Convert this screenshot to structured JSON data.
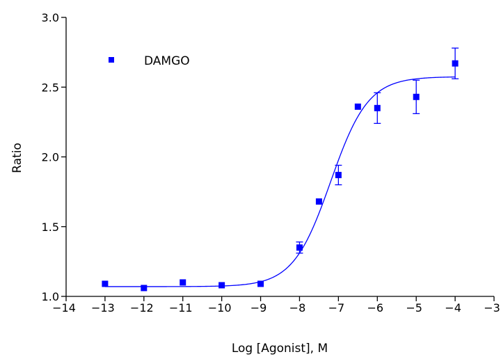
{
  "chart_data": {
    "type": "scatter",
    "xlabel": "Log [Agonist], M",
    "ylabel": "Ratio",
    "xlim": [
      -14,
      -3
    ],
    "ylim": [
      1.0,
      3.0
    ],
    "xticks": [
      "-14",
      "-13",
      "-12",
      "-11",
      "-10",
      "-9",
      "-8",
      "-7",
      "-6",
      "-5",
      "-4",
      "-3"
    ],
    "yticks": [
      "1.0",
      "1.5",
      "2.0",
      "2.5",
      "3.0"
    ],
    "grid": false,
    "legend_position": "top-left",
    "colors": {
      "series": "#0000ff",
      "axes": "#000000"
    },
    "series": [
      {
        "name": "DAMGO",
        "marker": "square",
        "x": [
          -13,
          -12,
          -11,
          -10,
          -9,
          -8,
          -7.5,
          -7,
          -6.5,
          -6,
          -5,
          -4
        ],
        "y": [
          1.09,
          1.06,
          1.1,
          1.08,
          1.09,
          1.35,
          1.68,
          1.87,
          2.36,
          2.35,
          2.43,
          2.67
        ],
        "error": [
          0,
          0,
          0,
          0,
          0,
          0.04,
          0,
          0.07,
          0,
          0.11,
          0.12,
          0.11
        ]
      }
    ],
    "fit_curve": {
      "model": "sigmoidal dose-response",
      "bottom": 1.07,
      "top": 2.575,
      "logEC50": -7.2,
      "hill": 0.9
    }
  }
}
